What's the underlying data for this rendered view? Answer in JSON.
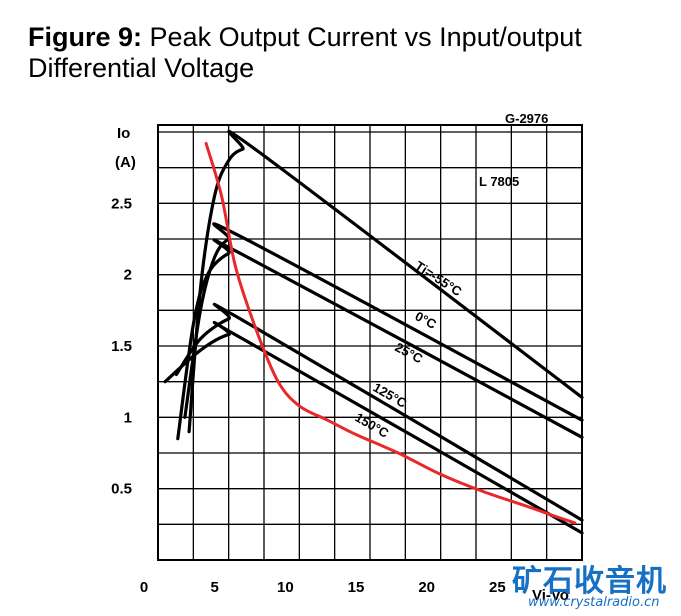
{
  "title": {
    "prefix": "Figure 9:",
    "text": "Peak Output Current vs Input/output Differential Voltage"
  },
  "chart_data": {
    "type": "line",
    "code": "G-2976",
    "device_label": "L 7805",
    "ylabel_line1": "Io",
    "ylabel_line2": "(A)",
    "xlabel": "Vi-Vo",
    "xlim": [
      0,
      30
    ],
    "ylim": [
      0,
      3
    ],
    "x_ticks": [
      0,
      5,
      10,
      15,
      20,
      25
    ],
    "y_ticks": [
      0.5,
      1,
      1.5,
      2,
      2.5
    ],
    "x_tick_labels": [
      "0",
      "5",
      "10",
      "15",
      "20",
      "25"
    ],
    "y_tick_labels": [
      "0.5",
      "1",
      "1.5",
      "2",
      "2.5"
    ],
    "grid": true,
    "series": [
      {
        "name": "Tj=-55°C",
        "color": "#000000",
        "points": [
          [
            2.2,
            0.9
          ],
          [
            3,
            1.9
          ],
          [
            4,
            2.55
          ],
          [
            5,
            2.8
          ],
          [
            6,
            2.88
          ],
          [
            7,
            2.87
          ],
          [
            30,
            1.14
          ]
        ]
      },
      {
        "name": "0°C",
        "color": "#000000",
        "points": [
          [
            1.9,
            1.0
          ],
          [
            3,
            1.75
          ],
          [
            4,
            2.12
          ],
          [
            5,
            2.25
          ],
          [
            6,
            2.26
          ],
          [
            30,
            0.98
          ]
        ]
      },
      {
        "name": "25°C",
        "color": "#000000",
        "points": [
          [
            1.4,
            0.85
          ],
          [
            2.5,
            1.65
          ],
          [
            3.5,
            2.0
          ],
          [
            5,
            2.15
          ],
          [
            6,
            2.14
          ],
          [
            30,
            0.86
          ]
        ]
      },
      {
        "name": "125°C",
        "color": "#000000",
        "points": [
          [
            1.3,
            1.3
          ],
          [
            3,
            1.55
          ],
          [
            5,
            1.69
          ],
          [
            6,
            1.68
          ],
          [
            30,
            0.28
          ]
        ]
      },
      {
        "name": "150°C",
        "color": "#000000",
        "points": [
          [
            0.5,
            1.25
          ],
          [
            3,
            1.47
          ],
          [
            5,
            1.58
          ],
          [
            6,
            1.55
          ],
          [
            30,
            0.19
          ]
        ]
      },
      {
        "name": "",
        "color": "#e8292c",
        "points": [
          [
            3.4,
            2.92
          ],
          [
            4.5,
            2.55
          ],
          [
            5.5,
            2.05
          ],
          [
            7,
            1.6
          ],
          [
            8.5,
            1.25
          ],
          [
            10,
            1.08
          ],
          [
            12,
            0.98
          ],
          [
            14,
            0.88
          ],
          [
            17,
            0.75
          ],
          [
            20,
            0.6
          ],
          [
            23,
            0.48
          ],
          [
            26,
            0.38
          ],
          [
            28,
            0.31
          ],
          [
            29.5,
            0.26
          ]
        ]
      }
    ],
    "annotations": [
      "Tj=-55°C",
      "0°C",
      "25°C",
      "125°C",
      "150°C"
    ]
  },
  "watermark": {
    "cn": "矿石收音机",
    "url": "www.crystalradio.cn"
  }
}
